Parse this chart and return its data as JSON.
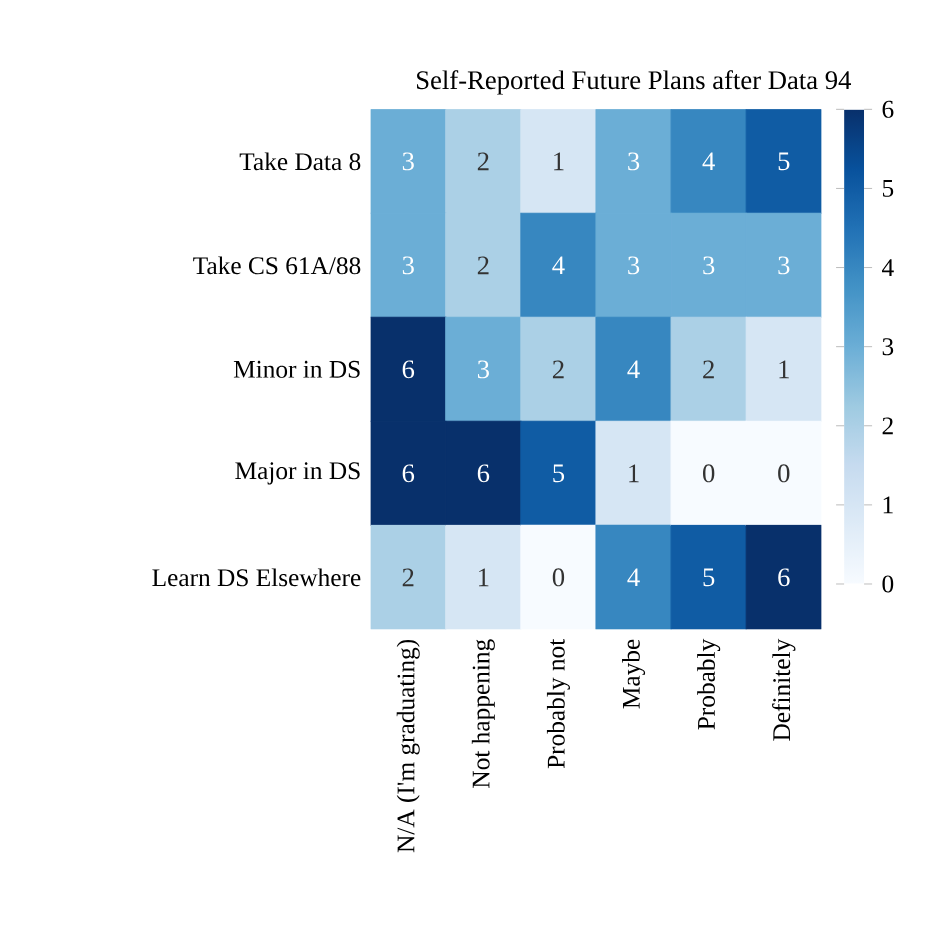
{
  "chart_data": {
    "type": "heatmap",
    "title": "Self-Reported Future Plans after Data 94",
    "categories": [
      "N/A (I'm graduating)",
      "Not happening",
      "Probably not",
      "Maybe",
      "Probably",
      "Definitely"
    ],
    "y_categories": [
      "Take Data 8",
      "Take CS 61A/88",
      "Minor in DS",
      "Major in DS",
      "Learn DS Elsewhere"
    ],
    "cells": [
      [
        3,
        2,
        1,
        3,
        4,
        5
      ],
      [
        3,
        2,
        4,
        3,
        3,
        3
      ],
      [
        6,
        3,
        2,
        4,
        2,
        1
      ],
      [
        6,
        6,
        5,
        1,
        0,
        0
      ],
      [
        2,
        1,
        0,
        4,
        5,
        6
      ]
    ],
    "clim": [
      0,
      6
    ],
    "cticks": [
      0,
      1,
      2,
      3,
      4,
      5,
      6
    ],
    "data_labels": true
  }
}
